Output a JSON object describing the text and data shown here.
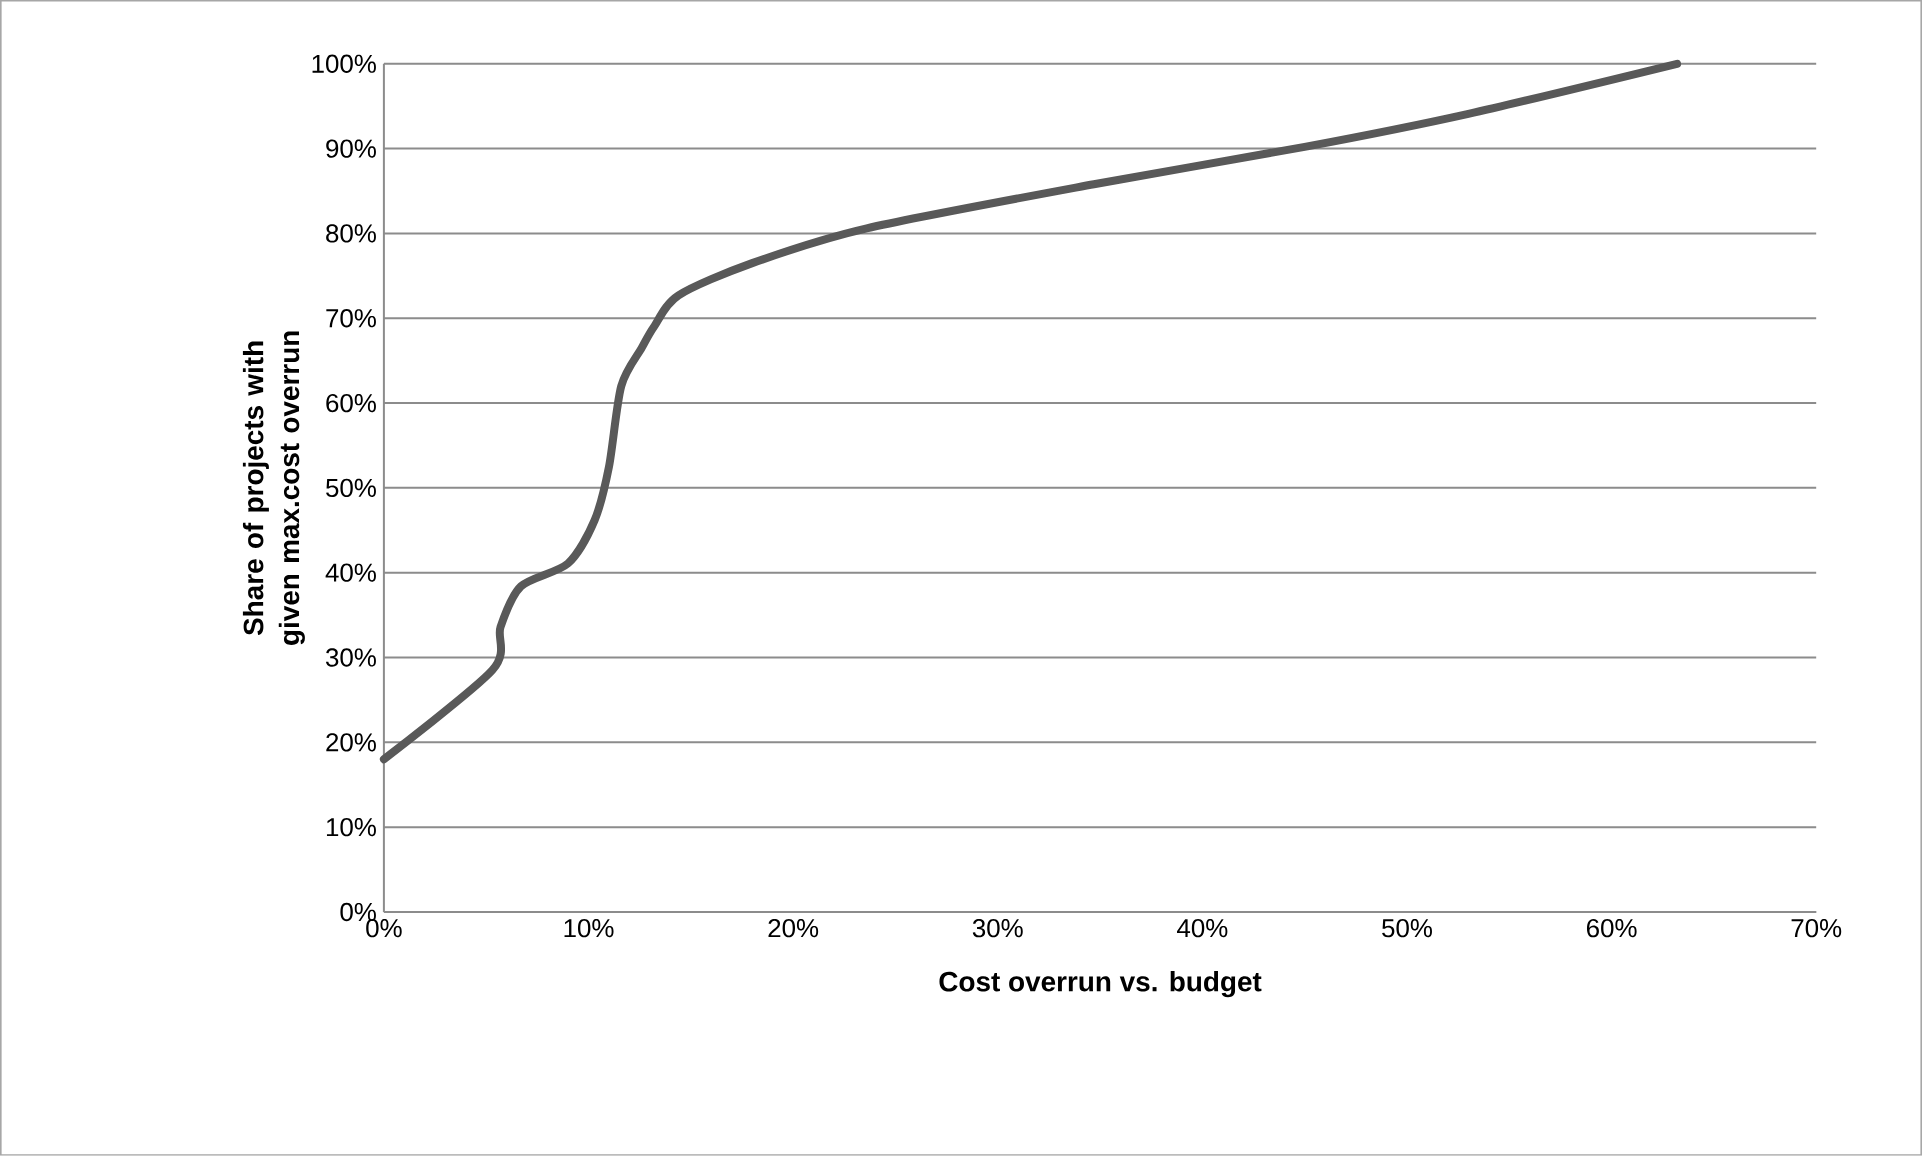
{
  "chart_data": {
    "type": "line",
    "xlabel": "Cost overrun vs. budget",
    "ylabel": "Share of projects with given max.cost overrun",
    "x": [
      0,
      5.3,
      5.7,
      6.7,
      9.0,
      10.3,
      11.0,
      11.6,
      12.6,
      13.2,
      14.4,
      18,
      23.6,
      34.7,
      45,
      53,
      63.2
    ],
    "series": [
      {
        "color": "#595959",
        "values": [
          18,
          28.5,
          33.6,
          38.4,
          41.1,
          46.2,
          52.5,
          62,
          66.5,
          69,
          72.7,
          76.5,
          80.6,
          85.8,
          90.2,
          94.1,
          100
        ]
      }
    ],
    "xlim": [
      0,
      70
    ],
    "ylim": [
      0,
      100
    ],
    "xticks": [
      {
        "value": 0,
        "label": "0%"
      },
      {
        "value": 10,
        "label": "10%"
      },
      {
        "value": 20,
        "label": "20%"
      },
      {
        "value": 30,
        "label": "30%"
      },
      {
        "value": 40,
        "label": "40%"
      },
      {
        "value": 50,
        "label": "50%"
      },
      {
        "value": 60,
        "label": "60%"
      },
      {
        "value": 70,
        "label": "70%"
      }
    ],
    "yticks": [
      {
        "value": 0,
        "label": "0%"
      },
      {
        "value": 10,
        "label": "10%"
      },
      {
        "value": 20,
        "label": "20%"
      },
      {
        "value": 30,
        "label": "30%"
      },
      {
        "value": 40,
        "label": "40%"
      },
      {
        "value": 50,
        "label": "50%"
      },
      {
        "value": 60,
        "label": "60%"
      },
      {
        "value": 70,
        "label": "70%"
      },
      {
        "value": 80,
        "label": "80%"
      },
      {
        "value": 90,
        "label": "90%"
      },
      {
        "value": 100,
        "label": "100%"
      }
    ],
    "grid": "y",
    "marker": "none",
    "line_style": "solid"
  }
}
